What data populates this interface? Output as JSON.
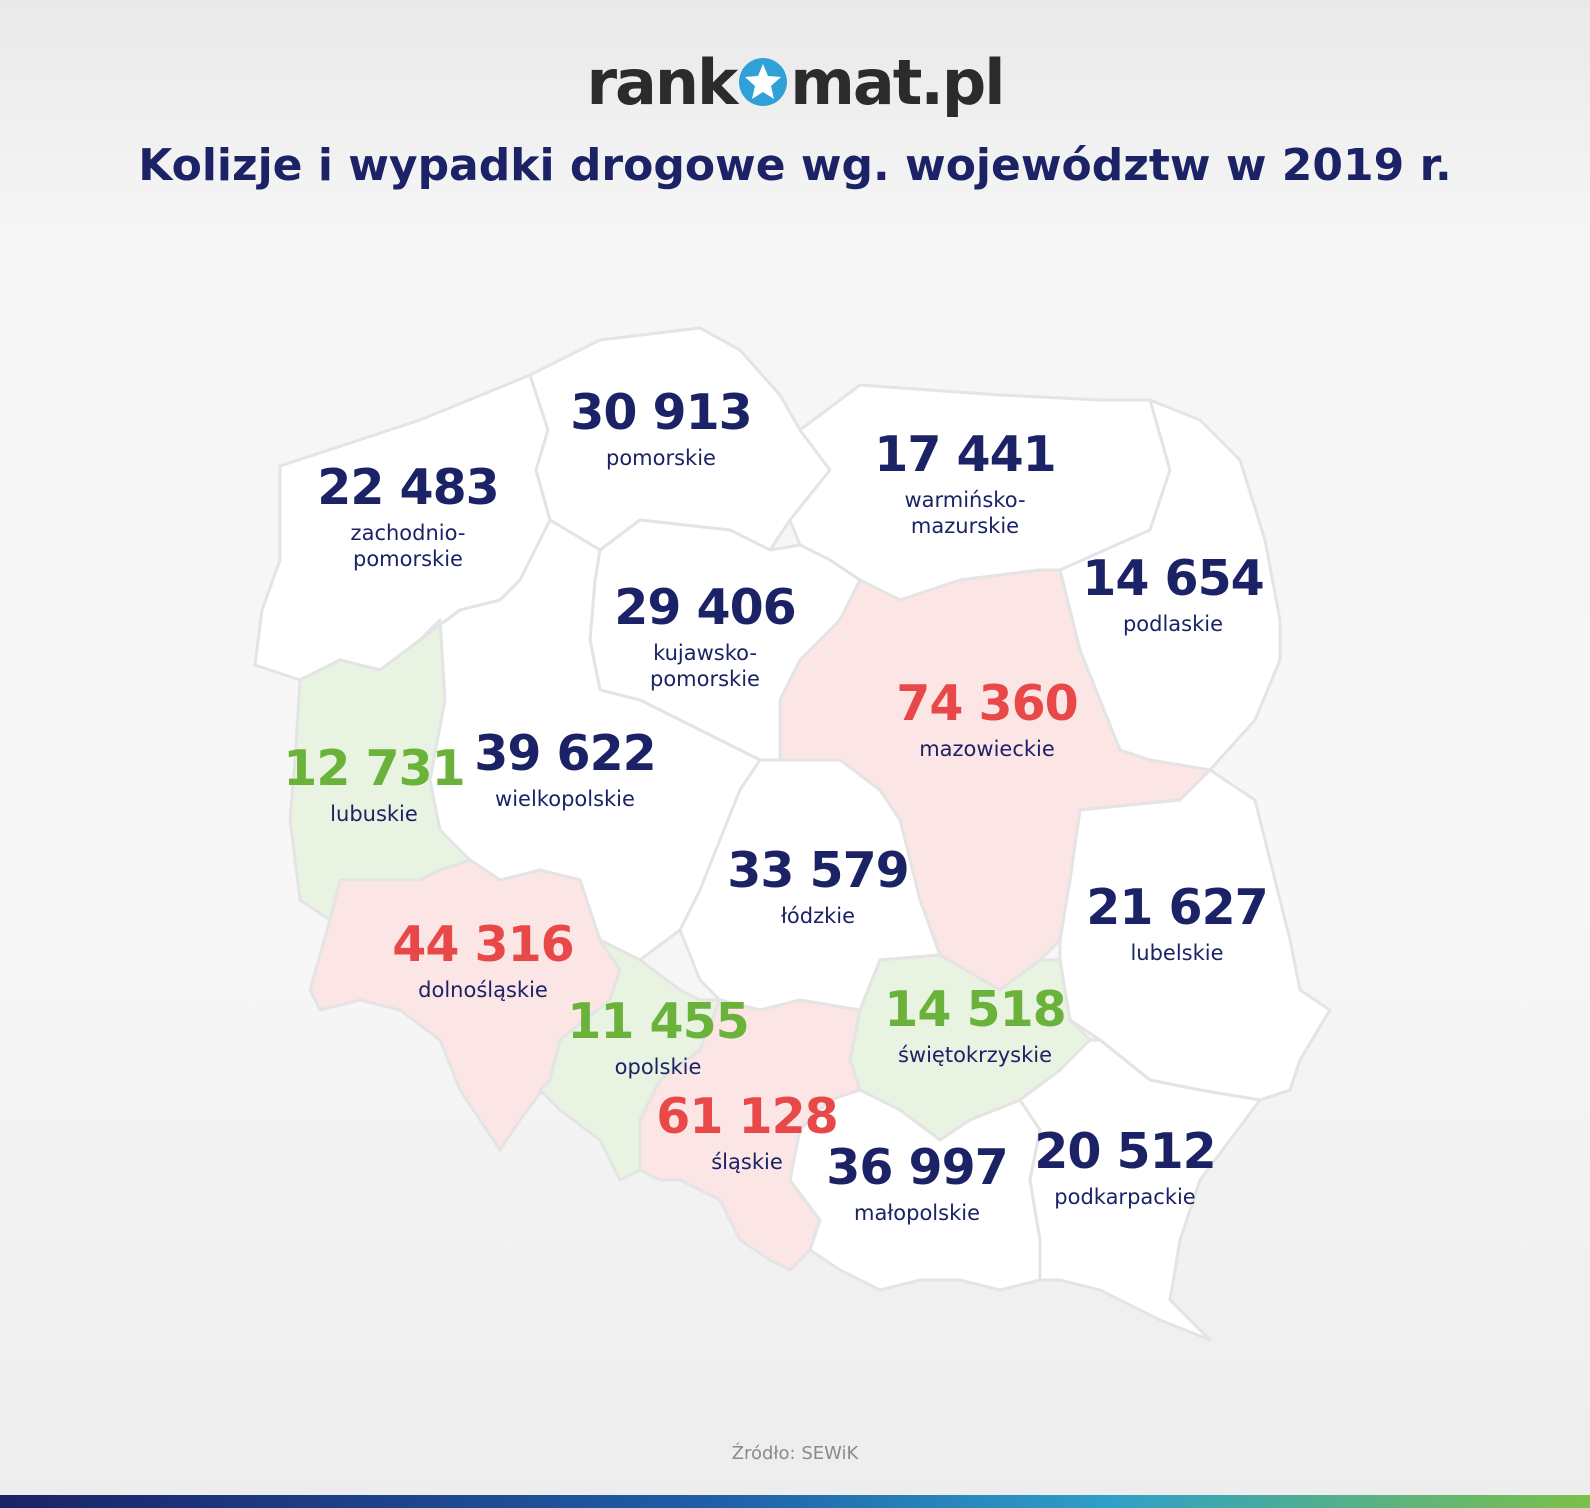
{
  "brand": {
    "logo_text_before": "rank",
    "logo_text_after": "mat.pl"
  },
  "title": "Kolizje i wypadki drogowe wg. województw w 2019 r.",
  "source": "Źródło: SEWiK",
  "colors": {
    "high": "#e84848",
    "low": "#6ab23a",
    "neutral": "#1b2266",
    "high_fill": "#fbe5e5",
    "low_fill": "#e8f3e2",
    "neutral_fill": "#ffffff"
  },
  "regions": [
    {
      "id": "zachodniopomorskie",
      "value": "22 483",
      "name": "zachodnio-\npomorskie",
      "category": "neutral"
    },
    {
      "id": "pomorskie",
      "value": "30 913",
      "name": "pomorskie",
      "category": "neutral"
    },
    {
      "id": "warminsko-mazurskie",
      "value": "17 441",
      "name": "warmińsko-\nmazurskie",
      "category": "neutral"
    },
    {
      "id": "podlaskie",
      "value": "14 654",
      "name": "podlaskie",
      "category": "neutral"
    },
    {
      "id": "kujawsko-pomorskie",
      "value": "29 406",
      "name": "kujawsko-\npomorskie",
      "category": "neutral"
    },
    {
      "id": "mazowieckie",
      "value": "74 360",
      "name": "mazowieckie",
      "category": "high"
    },
    {
      "id": "lubuskie",
      "value": "12 731",
      "name": "lubuskie",
      "category": "low"
    },
    {
      "id": "wielkopolskie",
      "value": "39 622",
      "name": "wielkopolskie",
      "category": "neutral"
    },
    {
      "id": "lodzkie",
      "value": "33 579",
      "name": "łódzkie",
      "category": "neutral"
    },
    {
      "id": "lubelskie",
      "value": "21 627",
      "name": "lubelskie",
      "category": "neutral"
    },
    {
      "id": "dolnoslaskie",
      "value": "44 316",
      "name": "dolnośląskie",
      "category": "high"
    },
    {
      "id": "opolskie",
      "value": "11 455",
      "name": "opolskie",
      "category": "low"
    },
    {
      "id": "swietokrzyskie",
      "value": "14 518",
      "name": "świętokrzyskie",
      "category": "low"
    },
    {
      "id": "slaskie",
      "value": "61 128",
      "name": "śląskie",
      "category": "high"
    },
    {
      "id": "malopolskie",
      "value": "36 997",
      "name": "małopolskie",
      "category": "neutral"
    },
    {
      "id": "podkarpackie",
      "value": "20 512",
      "name": "podkarpackie",
      "category": "neutral"
    }
  ]
}
